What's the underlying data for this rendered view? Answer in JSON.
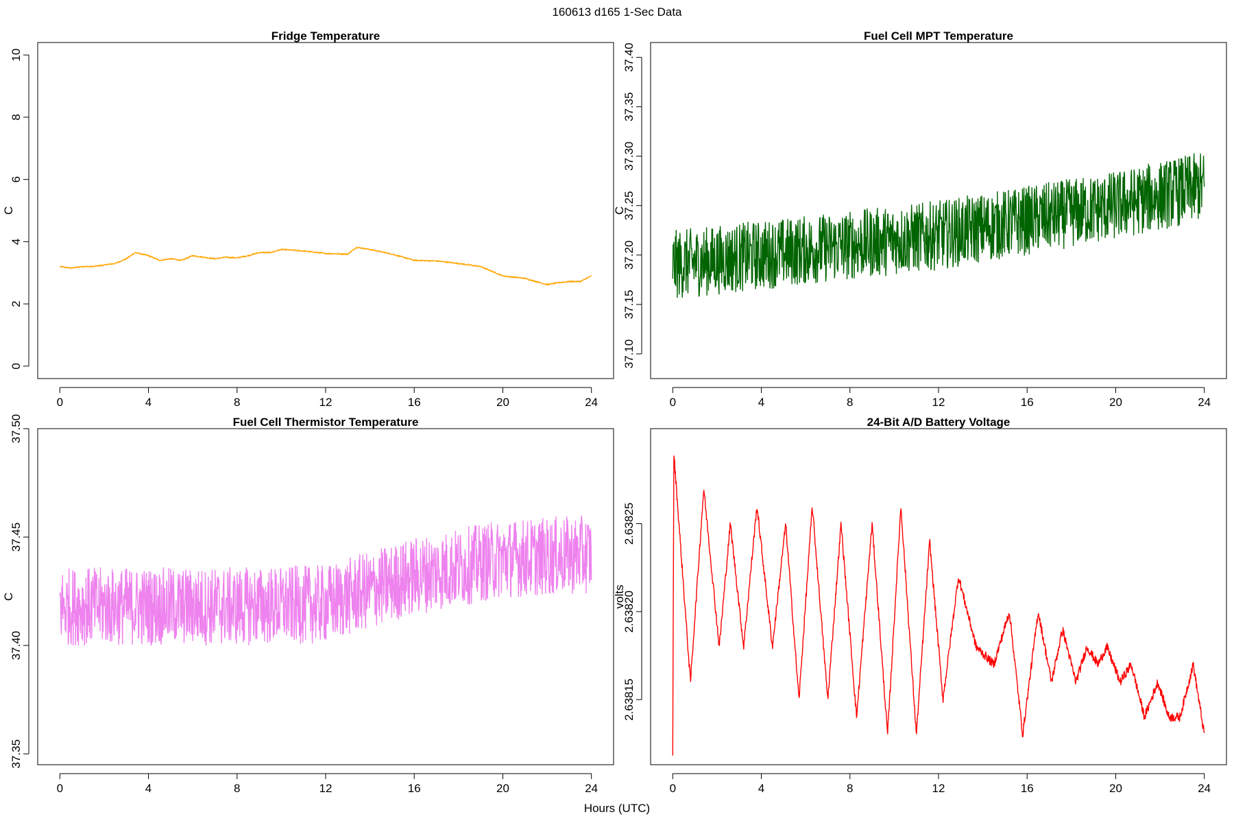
{
  "figure": {
    "suptitle": "160613   d165   1-Sec Data",
    "xlabel": "Hours (UTC)"
  },
  "chart_data": [
    {
      "type": "line",
      "title": "Fridge Temperature",
      "ylabel": "C",
      "color": "#FFA500",
      "noise": 0.02,
      "xlim": [
        -1,
        25
      ],
      "ylim": [
        -0.4,
        10.4
      ],
      "xticks": [
        0,
        4,
        8,
        12,
        16,
        20,
        24
      ],
      "xtick_labels": [
        "0",
        "4",
        "8",
        "12",
        "16",
        "20",
        "24"
      ],
      "yticks": [
        0,
        2,
        4,
        6,
        8,
        10
      ],
      "ytick_labels": [
        "0",
        "2",
        "4",
        "6",
        "8",
        "10"
      ],
      "series": [
        {
          "name": "Fridge Temperature",
          "x": [
            0,
            0.5,
            1,
            1.5,
            2,
            2.5,
            3,
            3.4,
            4,
            4.5,
            5,
            5.5,
            6,
            7,
            7.5,
            8,
            8.5,
            9,
            9.5,
            10,
            11,
            12,
            13,
            13.4,
            14,
            15,
            16,
            17,
            18,
            19,
            20,
            21,
            22,
            22.5,
            23,
            23.5,
            24
          ],
          "y": [
            3.2,
            3.15,
            3.2,
            3.2,
            3.25,
            3.3,
            3.45,
            3.65,
            3.55,
            3.4,
            3.45,
            3.4,
            3.55,
            3.45,
            3.5,
            3.48,
            3.55,
            3.65,
            3.65,
            3.75,
            3.7,
            3.62,
            3.6,
            3.82,
            3.75,
            3.6,
            3.4,
            3.38,
            3.3,
            3.2,
            2.9,
            2.82,
            2.62,
            2.68,
            2.72,
            2.72,
            2.9
          ]
        }
      ]
    },
    {
      "type": "line",
      "title": "Fuel Cell MPT Temperature",
      "ylabel": "C",
      "color": "#006400",
      "noise": 0.035,
      "xlim": [
        -1,
        25
      ],
      "ylim": [
        37.075,
        37.415
      ],
      "xticks": [
        0,
        4,
        8,
        12,
        16,
        20,
        24
      ],
      "xtick_labels": [
        "0",
        "4",
        "8",
        "12",
        "16",
        "20",
        "24"
      ],
      "yticks": [
        37.1,
        37.15,
        37.2,
        37.25,
        37.3,
        37.35,
        37.4
      ],
      "ytick_labels": [
        "37.10",
        "37.15",
        "37.20",
        "37.25",
        "37.30",
        "37.35",
        "37.40"
      ],
      "series": [
        {
          "name": "Fuel Cell MPT Temperature",
          "x": [
            0,
            4,
            8,
            12,
            16,
            20,
            24
          ],
          "y": [
            37.19,
            37.2,
            37.21,
            37.22,
            37.235,
            37.25,
            37.27
          ]
        }
      ]
    },
    {
      "type": "line",
      "title": "Fuel Cell Thermistor Temperature",
      "ylabel": "C",
      "color": "#EE82EE",
      "noise": 0.018,
      "xlim": [
        -1,
        25
      ],
      "ylim": [
        37.345,
        37.5
      ],
      "xticks": [
        0,
        4,
        8,
        12,
        16,
        20,
        24
      ],
      "xtick_labels": [
        "0",
        "4",
        "8",
        "12",
        "16",
        "20",
        "24"
      ],
      "yticks": [
        37.35,
        37.4,
        37.45,
        37.5
      ],
      "ytick_labels": [
        "37.35",
        "37.40",
        "37.45",
        "37.50"
      ],
      "series": [
        {
          "name": "Fuel Cell Thermistor Temperature",
          "x": [
            0,
            4,
            8,
            12,
            16,
            20,
            24
          ],
          "y": [
            37.418,
            37.418,
            37.418,
            37.419,
            37.432,
            37.44,
            37.442
          ]
        }
      ]
    },
    {
      "type": "line",
      "title": "24-Bit A/D Battery Voltage",
      "ylabel": "volts",
      "color": "#FF0000",
      "noise": 2.5e-06,
      "xlim": [
        -1,
        25
      ],
      "ylim": [
        2.638113,
        2.638304
      ],
      "xticks": [
        0,
        4,
        8,
        12,
        16,
        20,
        24
      ],
      "xtick_labels": [
        "0",
        "4",
        "8",
        "12",
        "16",
        "20",
        "24"
      ],
      "yticks": [
        2.63815,
        2.6382,
        2.63825
      ],
      "ytick_labels": [
        "2.63815",
        "2.63820",
        "2.63825"
      ],
      "series": [
        {
          "name": "24-Bit A/D Battery Voltage",
          "x": [
            0,
            0.05,
            0.8,
            1.4,
            2.1,
            2.6,
            3.2,
            3.8,
            4.5,
            5.1,
            5.7,
            6.3,
            7.0,
            7.6,
            8.3,
            9.0,
            9.7,
            10.3,
            11.0,
            11.6,
            12.2,
            12.9,
            13.7,
            14.5,
            15.2,
            15.8,
            16.5,
            17.1,
            17.6,
            18.2,
            18.7,
            19.2,
            19.6,
            20.2,
            20.7,
            21.3,
            21.9,
            22.4,
            22.9,
            23.5,
            24
          ],
          "y": [
            2.63812,
            2.63829,
            2.63816,
            2.63827,
            2.63818,
            2.63825,
            2.63818,
            2.63826,
            2.63818,
            2.63825,
            2.63815,
            2.63826,
            2.63815,
            2.63825,
            2.63814,
            2.63825,
            2.63813,
            2.63826,
            2.63813,
            2.63824,
            2.63815,
            2.63822,
            2.63818,
            2.63817,
            2.6382,
            2.63813,
            2.6382,
            2.63816,
            2.63819,
            2.63816,
            2.63818,
            2.63817,
            2.63818,
            2.63816,
            2.63817,
            2.63814,
            2.63816,
            2.63814,
            2.63814,
            2.63817,
            2.63813
          ]
        }
      ]
    }
  ]
}
